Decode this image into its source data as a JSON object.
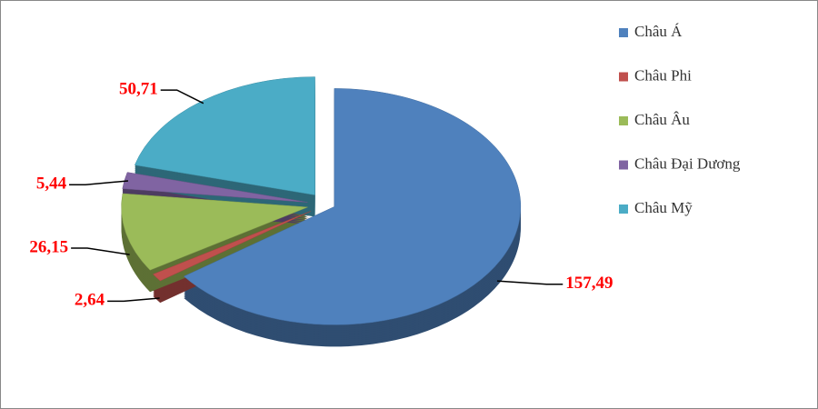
{
  "chart_data": {
    "type": "pie",
    "categories": [
      "Châu Á",
      "Châu Phi",
      "Châu Âu",
      "Châu Đại Dương",
      "Châu Mỹ"
    ],
    "values": [
      157.49,
      2.64,
      26.15,
      5.44,
      50.71
    ],
    "value_labels": [
      "157,49",
      "2,64",
      "26,15",
      "5,44",
      "50,71"
    ],
    "colors": [
      "#4f81bd",
      "#c0504d",
      "#9bbb59",
      "#8064a2",
      "#4bacc6"
    ],
    "legend": "right"
  }
}
